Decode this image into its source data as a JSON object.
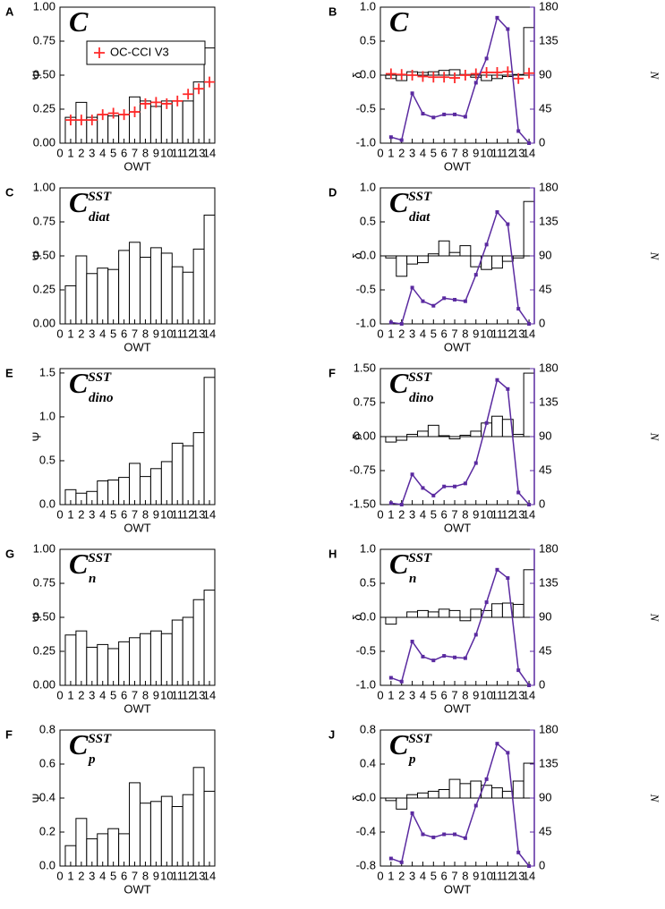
{
  "chart_data": [
    {
      "type": "bar",
      "panel_label": "A",
      "title": "C",
      "xlabel": "OWT",
      "ylabel": "Ψ",
      "x": [
        1,
        2,
        3,
        4,
        5,
        6,
        7,
        8,
        9,
        10,
        11,
        12,
        13,
        14
      ],
      "values": [
        0.19,
        0.3,
        0.19,
        0.21,
        0.2,
        0.21,
        0.34,
        0.31,
        0.27,
        0.31,
        0.31,
        0.31,
        0.45,
        0.7
      ],
      "color": "#ffffff",
      "xlim": [
        0,
        14.5
      ],
      "xticks": [
        0,
        1,
        2,
        3,
        4,
        5,
        6,
        7,
        8,
        9,
        10,
        11,
        12,
        13,
        14
      ],
      "ylim": [
        0,
        1
      ],
      "yticks": [
        {
          "value": 0,
          "label": "0.00"
        },
        0.25,
        {
          "value": 0.5,
          "label": "0.50"
        },
        0.75,
        {
          "value": 1,
          "label": "1.00"
        }
      ],
      "series": [
        {
          "type": "scatter",
          "name": "OC-CCI V3",
          "color": "#ff2a2a",
          "values": [
            0.17,
            0.17,
            0.17,
            0.21,
            0.22,
            0.21,
            0.23,
            0.29,
            0.3,
            0.29,
            0.31,
            0.36,
            0.4,
            0.45
          ]
        }
      ]
    },
    {
      "type": "bar",
      "panel_label": "B",
      "title": "C",
      "xlabel": "OWT",
      "ylabel": "δ",
      "y2label": "N",
      "x": [
        1,
        2,
        3,
        4,
        5,
        6,
        7,
        8,
        9,
        10,
        11,
        12,
        13,
        14
      ],
      "values": [
        -0.05,
        -0.08,
        0.05,
        0.04,
        0.05,
        0.07,
        0.08,
        0.01,
        -0.03,
        -0.08,
        -0.05,
        -0.02,
        0.01,
        0.7
      ],
      "color": "#ffffff",
      "xlim": [
        0,
        14.5
      ],
      "xticks": [
        0,
        1,
        2,
        3,
        4,
        5,
        6,
        7,
        8,
        9,
        10,
        11,
        12,
        13,
        14
      ],
      "ylim": [
        -1,
        1
      ],
      "yticks": [
        {
          "value": -1,
          "label": "-1.0"
        },
        -0.5,
        {
          "value": 0,
          "label": "0.0"
        },
        0.5,
        {
          "value": 1,
          "label": "1.0"
        }
      ],
      "y2lim": [
        0,
        180
      ],
      "y2ticks": [
        0,
        45,
        90,
        135,
        180
      ],
      "series": [
        {
          "type": "scatter",
          "color": "#ff2a2a",
          "values": [
            0.02,
            0.01,
            0.0,
            -0.02,
            -0.03,
            -0.03,
            -0.04,
            0.0,
            0.02,
            0.04,
            0.04,
            0.05,
            -0.05,
            0.03
          ]
        },
        {
          "type": "line",
          "axis": "y2",
          "color": "#5a2aa0",
          "values": [
            8,
            4,
            66,
            39,
            34,
            38,
            38,
            35,
            80,
            112,
            166,
            151,
            16,
            0
          ]
        }
      ]
    },
    {
      "type": "bar",
      "panel_label": "C",
      "title": "C",
      "title_sup": "SST",
      "title_sub": "diat",
      "xlabel": "OWT",
      "ylabel": "Ψ",
      "x": [
        1,
        2,
        3,
        4,
        5,
        6,
        7,
        8,
        9,
        10,
        11,
        12,
        13,
        14
      ],
      "values": [
        0.28,
        0.5,
        0.37,
        0.41,
        0.4,
        0.54,
        0.6,
        0.49,
        0.56,
        0.52,
        0.42,
        0.38,
        0.55,
        0.8
      ],
      "color": "#ffffff",
      "xlim": [
        0,
        14.5
      ],
      "xticks": [
        0,
        1,
        2,
        3,
        4,
        5,
        6,
        7,
        8,
        9,
        10,
        11,
        12,
        13,
        14
      ],
      "ylim": [
        0,
        1
      ],
      "yticks": [
        {
          "value": 0,
          "label": "0.00"
        },
        0.25,
        {
          "value": 0.5,
          "label": "0.50"
        },
        0.75,
        {
          "value": 1,
          "label": "1.00"
        }
      ]
    },
    {
      "type": "bar",
      "panel_label": "D",
      "title": "C",
      "title_sup": "SST",
      "title_sub": "diat",
      "xlabel": "OWT",
      "ylabel": "δ",
      "y2label": "N",
      "x": [
        1,
        2,
        3,
        4,
        5,
        6,
        7,
        8,
        9,
        10,
        11,
        12,
        13,
        14
      ],
      "values": [
        -0.03,
        -0.3,
        -0.12,
        -0.1,
        0.03,
        0.22,
        0.05,
        0.15,
        -0.16,
        -0.2,
        -0.18,
        -0.08,
        -0.03,
        0.8
      ],
      "color": "#ffffff",
      "xlim": [
        0,
        14.5
      ],
      "xticks": [
        0,
        1,
        2,
        3,
        4,
        5,
        6,
        7,
        8,
        9,
        10,
        11,
        12,
        13,
        14
      ],
      "ylim": [
        -1,
        1
      ],
      "yticks": [
        {
          "value": -1,
          "label": "-1.0"
        },
        -0.5,
        {
          "value": 0,
          "label": "0.0"
        },
        0.5,
        {
          "value": 1,
          "label": "1.0"
        }
      ],
      "y2lim": [
        0,
        180
      ],
      "y2ticks": [
        0,
        45,
        90,
        135,
        180
      ],
      "series": [
        {
          "type": "line",
          "axis": "y2",
          "color": "#5a2aa0",
          "values": [
            2,
            0,
            48,
            30,
            24,
            34,
            32,
            30,
            65,
            105,
            148,
            132,
            20,
            0
          ]
        }
      ]
    },
    {
      "type": "bar",
      "panel_label": "E",
      "title": "C",
      "title_sup": "SST",
      "title_sub": "dino",
      "xlabel": "OWT",
      "ylabel": "Ψ",
      "x": [
        1,
        2,
        3,
        4,
        5,
        6,
        7,
        8,
        9,
        10,
        11,
        12,
        13,
        14
      ],
      "values": [
        0.17,
        0.13,
        0.15,
        0.27,
        0.28,
        0.31,
        0.47,
        0.32,
        0.41,
        0.49,
        0.7,
        0.67,
        0.82,
        1.45
      ],
      "color": "#ffffff",
      "xlim": [
        0,
        14.5
      ],
      "xticks": [
        0,
        1,
        2,
        3,
        4,
        5,
        6,
        7,
        8,
        9,
        10,
        11,
        12,
        13,
        14
      ],
      "ylim": [
        0,
        1.55
      ],
      "yticks": [
        {
          "value": 0,
          "label": "0.0"
        },
        0.5,
        {
          "value": 1,
          "label": "1.0"
        },
        1.5
      ]
    },
    {
      "type": "bar",
      "panel_label": "F",
      "title": "C",
      "title_sup": "SST",
      "title_sub": "dino",
      "xlabel": "OWT",
      "ylabel": "δ",
      "y2label": "N",
      "x": [
        1,
        2,
        3,
        4,
        5,
        6,
        7,
        8,
        9,
        10,
        11,
        12,
        13,
        14
      ],
      "values": [
        -0.12,
        -0.08,
        0.05,
        0.12,
        0.25,
        0.02,
        -0.05,
        0.03,
        0.12,
        0.3,
        0.45,
        0.38,
        0.05,
        1.4
      ],
      "color": "#ffffff",
      "xlim": [
        0,
        14.5
      ],
      "xticks": [
        0,
        1,
        2,
        3,
        4,
        5,
        6,
        7,
        8,
        9,
        10,
        11,
        12,
        13,
        14
      ],
      "ylim": [
        -1.5,
        1.5
      ],
      "yticks": [
        {
          "value": -1.5,
          "label": "-1.50"
        },
        -0.75,
        {
          "value": 0,
          "label": "0.00"
        },
        0.75,
        {
          "value": 1.5,
          "label": "1.50"
        }
      ],
      "y2lim": [
        0,
        180
      ],
      "y2ticks": [
        0,
        45,
        90,
        135,
        180
      ],
      "series": [
        {
          "type": "line",
          "axis": "y2",
          "color": "#5a2aa0",
          "values": [
            2,
            0,
            40,
            22,
            12,
            24,
            24,
            28,
            55,
            108,
            165,
            153,
            16,
            0
          ]
        }
      ]
    },
    {
      "type": "bar",
      "panel_label": "G",
      "title": "C",
      "title_sup": "SST",
      "title_sub": "n",
      "xlabel": "OWT",
      "ylabel": "Ψ",
      "x": [
        1,
        2,
        3,
        4,
        5,
        6,
        7,
        8,
        9,
        10,
        11,
        12,
        13,
        14
      ],
      "values": [
        0.37,
        0.4,
        0.28,
        0.3,
        0.27,
        0.32,
        0.35,
        0.38,
        0.4,
        0.38,
        0.48,
        0.5,
        0.63,
        0.7
      ],
      "color": "#ffffff",
      "xlim": [
        0,
        14.5
      ],
      "xticks": [
        0,
        1,
        2,
        3,
        4,
        5,
        6,
        7,
        8,
        9,
        10,
        11,
        12,
        13,
        14
      ],
      "ylim": [
        0,
        1
      ],
      "yticks": [
        {
          "value": 0,
          "label": "0.00"
        },
        0.25,
        {
          "value": 0.5,
          "label": "0.50"
        },
        0.75,
        {
          "value": 1,
          "label": "1.00"
        }
      ]
    },
    {
      "type": "bar",
      "panel_label": "H",
      "title": "C",
      "title_sup": "SST",
      "title_sub": "n",
      "xlabel": "OWT",
      "ylabel": "δ",
      "y2label": "N",
      "x": [
        1,
        2,
        3,
        4,
        5,
        6,
        7,
        8,
        9,
        10,
        11,
        12,
        13,
        14
      ],
      "values": [
        -0.1,
        0.0,
        0.08,
        0.1,
        0.08,
        0.12,
        0.1,
        -0.05,
        0.12,
        0.1,
        0.2,
        0.21,
        0.19,
        0.7
      ],
      "color": "#ffffff",
      "xlim": [
        0,
        14.5
      ],
      "xticks": [
        0,
        1,
        2,
        3,
        4,
        5,
        6,
        7,
        8,
        9,
        10,
        11,
        12,
        13,
        14
      ],
      "ylim": [
        -1,
        1
      ],
      "yticks": [
        {
          "value": -1,
          "label": "-1.0"
        },
        -0.5,
        {
          "value": 0,
          "label": "0.0"
        },
        0.5,
        {
          "value": 1,
          "label": "1.0"
        }
      ],
      "y2lim": [
        0,
        180
      ],
      "y2ticks": [
        0,
        45,
        90,
        135,
        180
      ],
      "series": [
        {
          "type": "line",
          "axis": "y2",
          "color": "#5a2aa0",
          "values": [
            10,
            5,
            58,
            38,
            33,
            39,
            37,
            36,
            67,
            110,
            153,
            142,
            20,
            0
          ]
        }
      ]
    },
    {
      "type": "bar",
      "panel_label": "F",
      "title": "C",
      "title_sup": "SST",
      "title_sub": "p",
      "xlabel": "OWT",
      "ylabel": "Ψ",
      "x": [
        1,
        2,
        3,
        4,
        5,
        6,
        7,
        8,
        9,
        10,
        11,
        12,
        13,
        14
      ],
      "values": [
        0.12,
        0.28,
        0.16,
        0.19,
        0.22,
        0.19,
        0.49,
        0.37,
        0.38,
        0.41,
        0.35,
        0.42,
        0.58,
        0.44
      ],
      "color": "#ffffff",
      "xlim": [
        0,
        14.5
      ],
      "xticks": [
        0,
        1,
        2,
        3,
        4,
        5,
        6,
        7,
        8,
        9,
        10,
        11,
        12,
        13,
        14
      ],
      "ylim": [
        0,
        0.8
      ],
      "yticks": [
        {
          "value": 0,
          "label": "0.0"
        },
        0.2,
        0.4,
        0.6,
        0.8
      ]
    },
    {
      "type": "bar",
      "panel_label": "J",
      "title": "C",
      "title_sup": "SST",
      "title_sub": "p",
      "xlabel": "OWT",
      "ylabel": "δ",
      "y2label": "N",
      "x": [
        1,
        2,
        3,
        4,
        5,
        6,
        7,
        8,
        9,
        10,
        11,
        12,
        13,
        14
      ],
      "values": [
        -0.03,
        -0.13,
        0.04,
        0.06,
        0.08,
        0.1,
        0.22,
        0.17,
        0.2,
        0.15,
        0.12,
        0.08,
        0.2,
        0.41
      ],
      "color": "#ffffff",
      "xlim": [
        0,
        14.5
      ],
      "xticks": [
        0,
        1,
        2,
        3,
        4,
        5,
        6,
        7,
        8,
        9,
        10,
        11,
        12,
        13,
        14
      ],
      "ylim": [
        -0.8,
        0.8
      ],
      "yticks": [
        -0.8,
        -0.4,
        {
          "value": 0,
          "label": "0.0"
        },
        0.4,
        0.8
      ],
      "y2lim": [
        0,
        180
      ],
      "y2ticks": [
        0,
        45,
        90,
        135,
        180
      ],
      "series": [
        {
          "type": "line",
          "axis": "y2",
          "color": "#5a2aa0",
          "values": [
            10,
            5,
            70,
            42,
            38,
            42,
            42,
            37,
            80,
            115,
            162,
            150,
            18,
            0
          ]
        }
      ]
    }
  ]
}
